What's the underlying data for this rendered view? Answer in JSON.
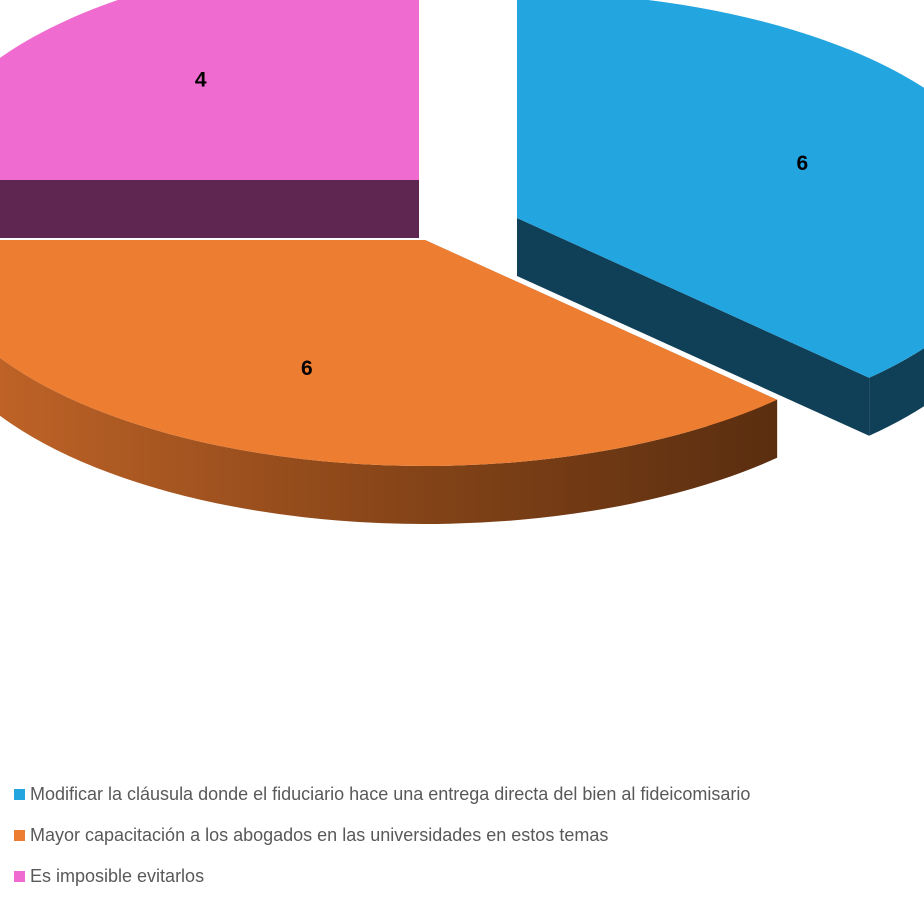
{
  "chart_data": {
    "type": "pie",
    "style": "3d-exploded",
    "title": "",
    "slices": [
      {
        "label": "Modificar la cláusula donde el fiduciario hace una entrega directa del bien al fideicomisario",
        "value": 6,
        "color": "#23A5E0",
        "side_color": "#104058"
      },
      {
        "label": "Mayor capacitación a los abogados en las universidades en estos temas",
        "value": 6,
        "color": "#ED7D31",
        "side_color": "#8E4A1D"
      },
      {
        "label": "Es imposible evitarlos",
        "value": 4,
        "color": "#EF6BCF",
        "side_color": "#5F2651"
      }
    ],
    "legend_position": "bottom-left",
    "data_labels": true
  }
}
